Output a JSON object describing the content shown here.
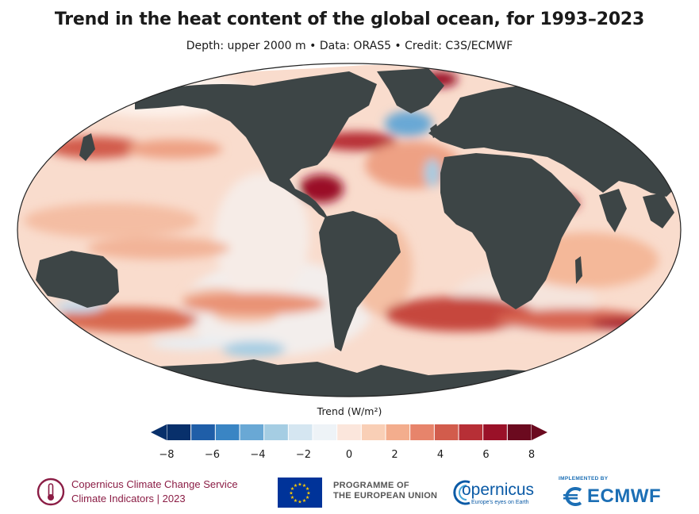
{
  "header": {
    "title": "Trend in the heat content of the global ocean, for 1993–2023",
    "subtitle": "Depth: upper 2000 m • Data: ORAS5 • Credit: C3S/ECMWF"
  },
  "map": {
    "projection": "robinson",
    "land_color": "#3d4546",
    "ocean_base_color": "#f9dccd"
  },
  "colorbar": {
    "title": "Trend (W/m²)",
    "ticks": [
      "-8",
      "-6",
      "-4",
      "-2",
      "0",
      "2",
      "4",
      "6",
      "8"
    ],
    "range": [
      -8,
      8
    ],
    "colors": [
      "#08306b",
      "#1f5ea8",
      "#3a85c4",
      "#69a8d5",
      "#a5cde3",
      "#d5e6f1",
      "#eef3f7",
      "#fbe6dc",
      "#f9cfb6",
      "#f3ad8d",
      "#e7846b",
      "#d25c4c",
      "#b72f36",
      "#9a1128",
      "#6b0a1f"
    ],
    "under_color": "#08306b",
    "over_color": "#6b0a1f"
  },
  "footer": {
    "copernicus_service_line1": "Copernicus Climate Change Service",
    "copernicus_service_line2": "Climate Indicators | 2023",
    "eu_programme_line1": "PROGRAMME OF",
    "eu_programme_line2": "THE EUROPEAN UNION",
    "copernicus_word": "opernicus",
    "copernicus_tagline": "Europe's eyes on Earth",
    "ecmwf_implemented": "IMPLEMENTED BY",
    "ecmwf_word": "ECMWF"
  }
}
